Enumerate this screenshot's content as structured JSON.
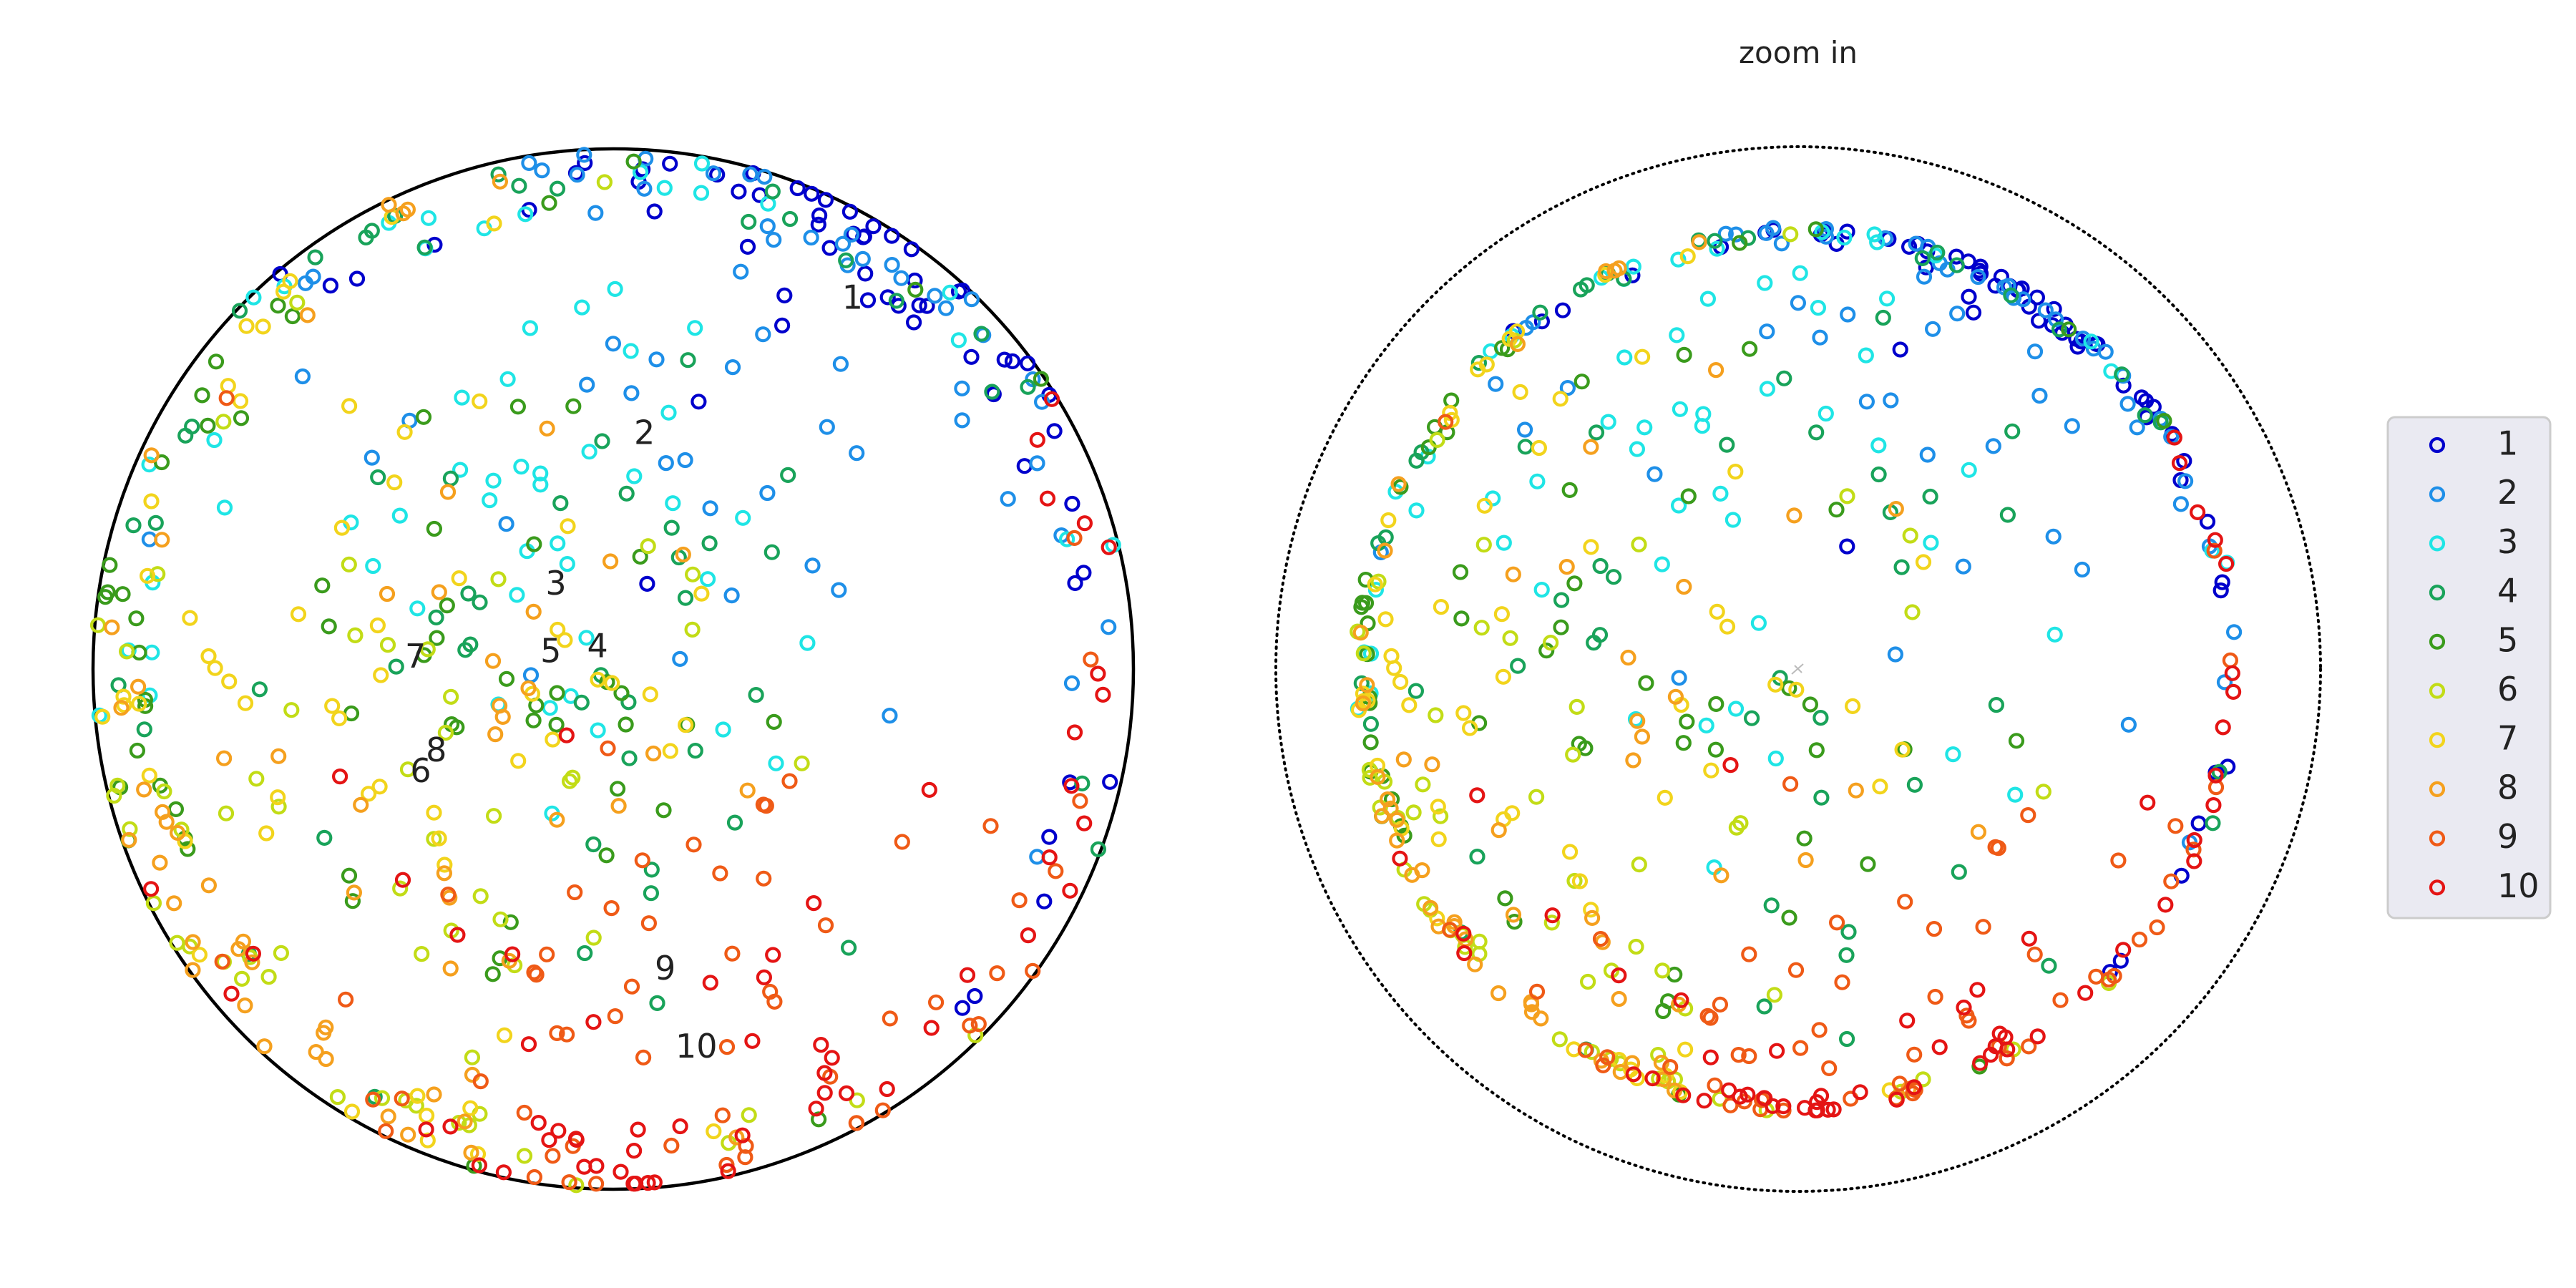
{
  "chart_data": [
    {
      "type": "scatter",
      "title": "",
      "boundary": "unit disk, solid",
      "axes_visible": false,
      "cluster_labels": [
        "1",
        "2",
        "3",
        "4",
        "5",
        "6",
        "7",
        "8",
        "9",
        "10"
      ],
      "cluster_label_positions": [
        {
          "label": "1",
          "x": 0.46,
          "y": 0.71
        },
        {
          "label": "2",
          "x": 0.06,
          "y": 0.45
        },
        {
          "label": "3",
          "x": -0.11,
          "y": 0.16
        },
        {
          "label": "4",
          "x": -0.03,
          "y": 0.04
        },
        {
          "label": "5",
          "x": -0.12,
          "y": 0.03
        },
        {
          "label": "6",
          "x": -0.37,
          "y": -0.2
        },
        {
          "label": "7",
          "x": -0.38,
          "y": 0.02
        },
        {
          "label": "8",
          "x": -0.34,
          "y": -0.16
        },
        {
          "label": "9",
          "x": 0.1,
          "y": -0.58
        },
        {
          "label": "10",
          "x": 0.16,
          "y": -0.73
        }
      ],
      "points": []
    },
    {
      "type": "scatter",
      "title": "zoom in",
      "boundary": "disk, dotted",
      "axes_visible": false,
      "points": []
    }
  ],
  "legend": {
    "placement": "right",
    "entries": [
      {
        "label": "1",
        "color": "#0000cc"
      },
      {
        "label": "2",
        "color": "#1e8fe8"
      },
      {
        "label": "3",
        "color": "#1fe5e5"
      },
      {
        "label": "4",
        "color": "#19a35a"
      },
      {
        "label": "5",
        "color": "#3a9b1c"
      },
      {
        "label": "6",
        "color": "#c2dc16"
      },
      {
        "label": "7",
        "color": "#f2d41c"
      },
      {
        "label": "8",
        "color": "#f5a01e"
      },
      {
        "label": "9",
        "color": "#ef5a16"
      },
      {
        "label": "10",
        "color": "#e41414"
      }
    ]
  }
}
